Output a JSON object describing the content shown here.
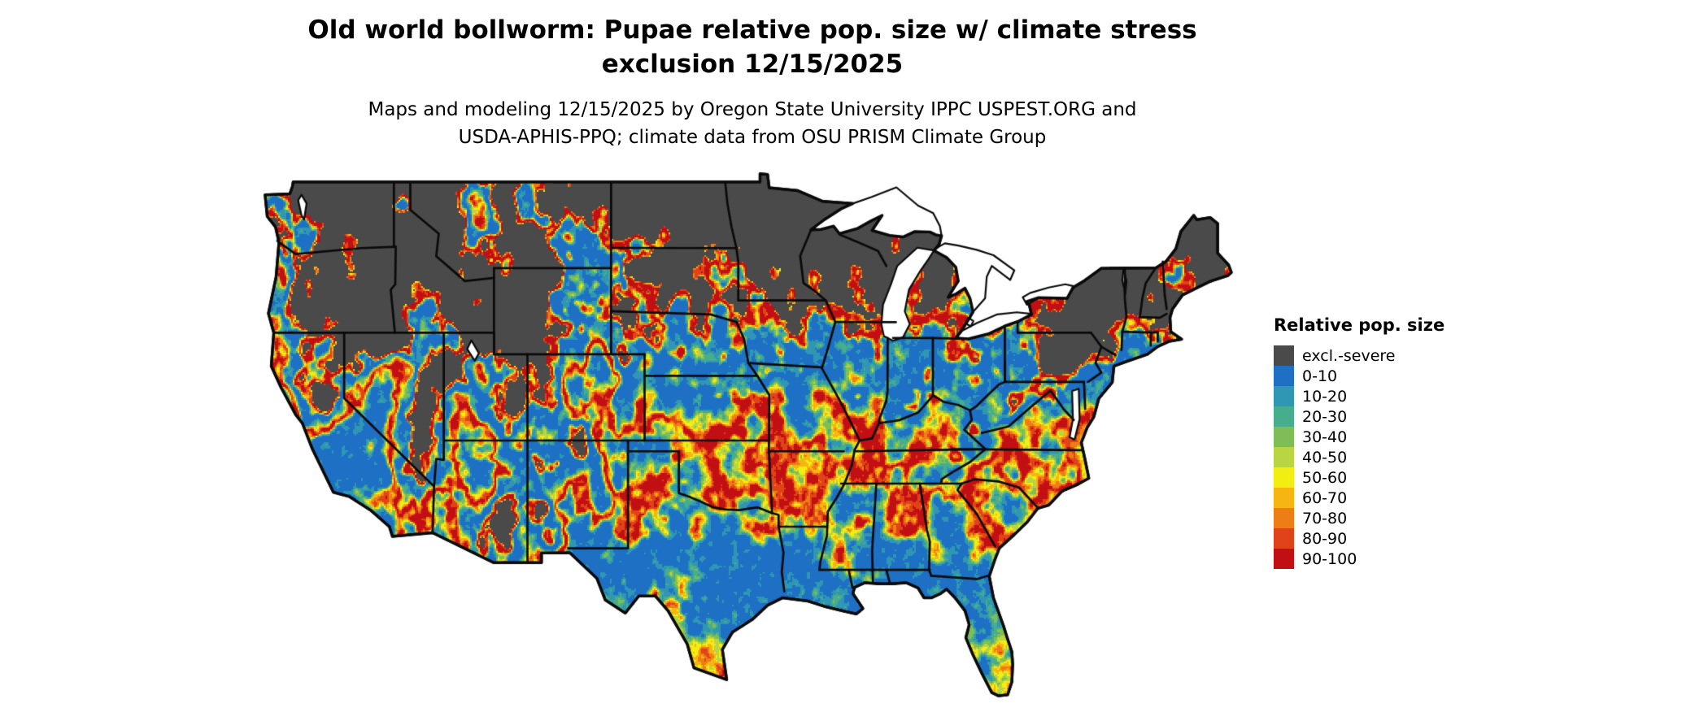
{
  "title": {
    "line1": "Old world bollworm: Pupae relative pop. size w/ climate stress",
    "line2": "exclusion 12/15/2025"
  },
  "subtitle": {
    "line1": "Maps and modeling 12/15/2025 by Oregon State University IPPC USPEST.ORG and",
    "line2": "USDA-APHIS-PPQ; climate data from OSU PRISM Climate Group"
  },
  "map": {
    "type": "raster-choropleth",
    "region": "Contiguous United States",
    "background_color": "#ffffff",
    "border_color": "#0a0a0a"
  },
  "legend": {
    "title": "Relative pop. size",
    "items": [
      {
        "label": "excl.-severe",
        "color": "#4a4a4a"
      },
      {
        "label": "0-10",
        "color": "#1d70c4"
      },
      {
        "label": "10-20",
        "color": "#2f96b4"
      },
      {
        "label": "20-30",
        "color": "#46ad8d"
      },
      {
        "label": "30-40",
        "color": "#7fbe56"
      },
      {
        "label": "40-50",
        "color": "#b8d543"
      },
      {
        "label": "50-60",
        "color": "#f3ee12"
      },
      {
        "label": "60-70",
        "color": "#f6b511"
      },
      {
        "label": "70-80",
        "color": "#ef7d15"
      },
      {
        "label": "80-90",
        "color": "#e04318"
      },
      {
        "label": "90-100",
        "color": "#c20f13"
      }
    ]
  }
}
